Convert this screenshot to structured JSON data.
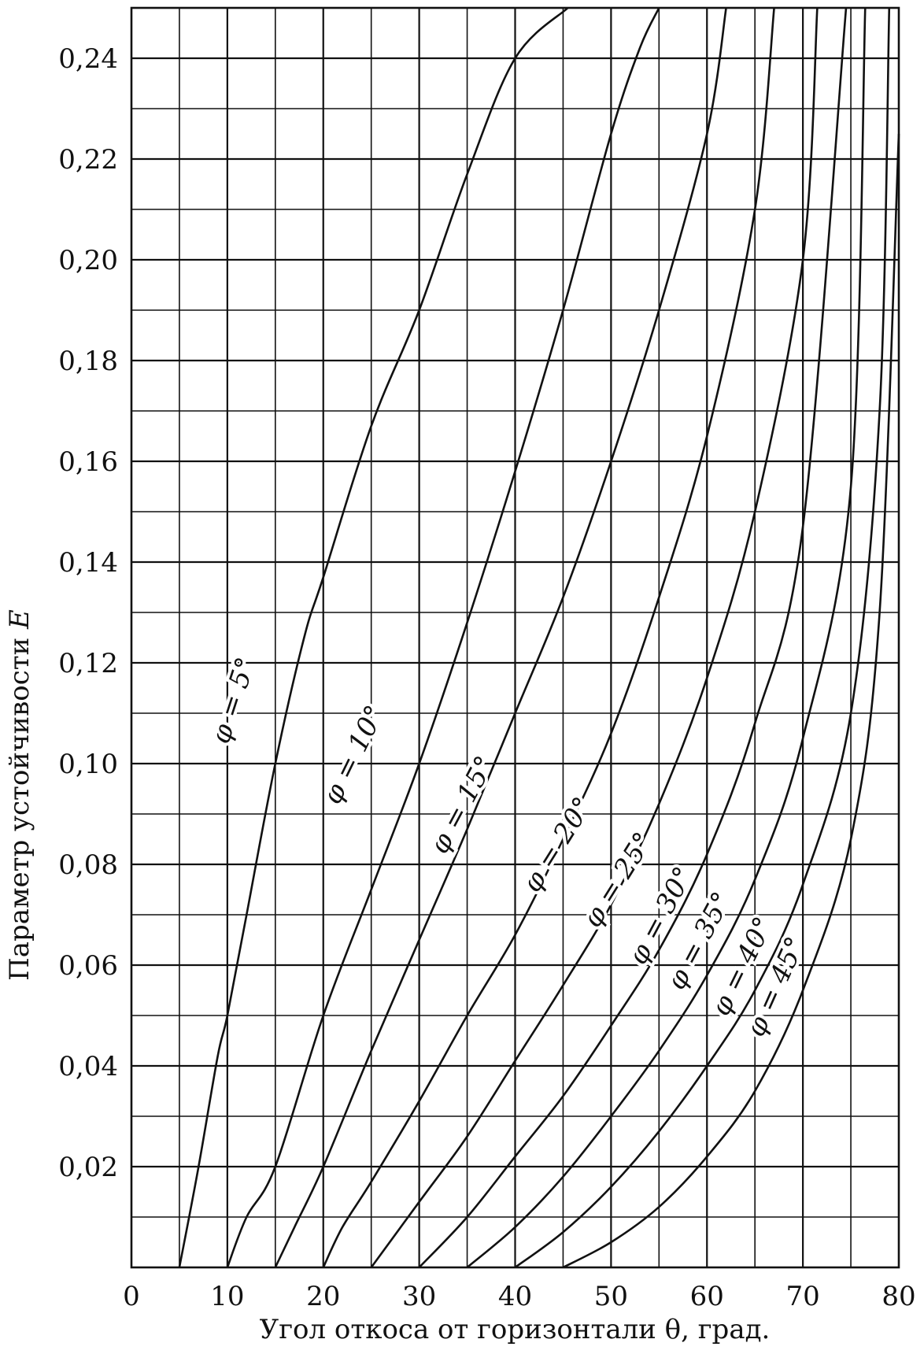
{
  "chart_data": {
    "type": "line",
    "title": "",
    "xlabel": "Угол откоса от горизонтали θ, град.",
    "ylabel": "Параметр устойчивости",
    "ylabel_symbol": "E",
    "xlim": [
      0,
      80
    ],
    "ylim": [
      0,
      0.25
    ],
    "grid": true,
    "x_ticks": [
      0,
      10,
      20,
      30,
      40,
      50,
      60,
      70,
      80
    ],
    "x_tick_labels": [
      "0",
      "10",
      "20",
      "30",
      "40",
      "50",
      "60",
      "70",
      "80"
    ],
    "y_ticks": [
      0.02,
      0.04,
      0.06,
      0.08,
      0.1,
      0.12,
      0.14,
      0.16,
      0.18,
      0.2,
      0.22,
      0.24
    ],
    "y_tick_labels": [
      "0,02",
      "0,04",
      "0,06",
      "0,08",
      "0,10",
      "0,12",
      "0,14",
      "0,16",
      "0,18",
      "0,20",
      "0,22",
      "0,24"
    ],
    "series": [
      {
        "name": "φ = 5°",
        "x": [
          5,
          7,
          9,
          10,
          12,
          15,
          18,
          20,
          25,
          30,
          35,
          40,
          45.5
        ],
        "y": [
          0,
          0.02,
          0.042,
          0.05,
          0.07,
          0.1,
          0.125,
          0.137,
          0.167,
          0.19,
          0.217,
          0.24,
          0.25
        ]
      },
      {
        "name": "φ = 10°",
        "x": [
          10,
          12,
          15,
          20,
          25,
          30,
          35,
          40,
          45,
          50,
          53,
          55
        ],
        "y": [
          0,
          0.01,
          0.02,
          0.05,
          0.075,
          0.1,
          0.128,
          0.158,
          0.19,
          0.225,
          0.242,
          0.25
        ]
      },
      {
        "name": "φ = 15°",
        "x": [
          15,
          17,
          20,
          25,
          30,
          35,
          40,
          45,
          50,
          55,
          60,
          62
        ],
        "y": [
          0,
          0.008,
          0.02,
          0.043,
          0.065,
          0.087,
          0.11,
          0.133,
          0.16,
          0.19,
          0.225,
          0.25
        ]
      },
      {
        "name": "φ = 20°",
        "x": [
          20,
          22,
          25,
          30,
          35,
          40,
          45,
          50,
          55,
          60,
          65,
          67
        ],
        "y": [
          0,
          0.008,
          0.017,
          0.033,
          0.05,
          0.066,
          0.085,
          0.106,
          0.133,
          0.165,
          0.21,
          0.25
        ]
      },
      {
        "name": "φ = 25°",
        "x": [
          25,
          30,
          35,
          40,
          45,
          50,
          55,
          60,
          65,
          70,
          71.5
        ],
        "y": [
          0,
          0.013,
          0.026,
          0.041,
          0.056,
          0.072,
          0.092,
          0.117,
          0.15,
          0.2,
          0.25
        ]
      },
      {
        "name": "φ = 30°",
        "x": [
          30,
          35,
          40,
          45,
          50,
          55,
          60,
          65,
          70,
          74.5
        ],
        "y": [
          0,
          0.01,
          0.022,
          0.034,
          0.048,
          0.063,
          0.082,
          0.108,
          0.147,
          0.25
        ]
      },
      {
        "name": "φ = 35°",
        "x": [
          35,
          40,
          45,
          50,
          55,
          60,
          65,
          70,
          75,
          76.5
        ],
        "y": [
          0,
          0.008,
          0.018,
          0.03,
          0.043,
          0.058,
          0.077,
          0.105,
          0.155,
          0.25
        ]
      },
      {
        "name": "φ = 40°",
        "x": [
          40,
          45,
          50,
          55,
          60,
          65,
          70,
          75,
          78,
          79
        ],
        "y": [
          0,
          0.007,
          0.016,
          0.027,
          0.04,
          0.055,
          0.076,
          0.11,
          0.17,
          0.25
        ]
      },
      {
        "name": "φ = 45°",
        "x": [
          45,
          50,
          55,
          60,
          65,
          70,
          75,
          78,
          80
        ],
        "y": [
          0,
          0.005,
          0.012,
          0.022,
          0.035,
          0.055,
          0.085,
          0.13,
          0.225
        ]
      }
    ],
    "curve_labels": [
      {
        "text": "φ = 5°"
      },
      {
        "text": "φ = 10°"
      },
      {
        "text": "φ = 15°"
      },
      {
        "text": "φ = 20°"
      },
      {
        "text": "φ = 25°"
      },
      {
        "text": "φ = 30°"
      },
      {
        "text": "φ = 35°"
      },
      {
        "text": "φ = 40°"
      },
      {
        "text": "φ = 45°"
      }
    ]
  }
}
